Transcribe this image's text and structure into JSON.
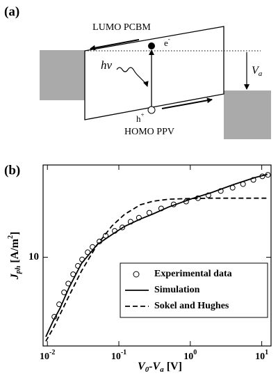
{
  "diagram": {
    "panel_label": "(a)",
    "lumo": "LUMO PCBM",
    "electron": "e",
    "electron_sup": "-",
    "photon": "hν",
    "hole": "h",
    "hole_sup": "+",
    "homo": "HOMO PPV",
    "voltage": "V",
    "voltage_sub": "a"
  },
  "chart_data": {
    "type": "line",
    "panel_label": "(b)",
    "y_label_parts": [
      "J",
      "ph",
      " [A/m",
      "2",
      "]"
    ],
    "x_label_parts": [
      "V",
      "0",
      "-V",
      "a",
      " [V]"
    ],
    "xscale": "log",
    "yscale": "log",
    "xlim": [
      0.0087,
      13.5
    ],
    "ylim": [
      3,
      35
    ],
    "xticks": [
      {
        "value": 0.01,
        "label": "10",
        "exponent": "-2"
      },
      {
        "value": 0.1,
        "label": "10",
        "exponent": "-1"
      },
      {
        "value": 1,
        "label": "10",
        "exponent": "0"
      },
      {
        "value": 10,
        "label": "10",
        "exponent": "1"
      }
    ],
    "yticks": [
      10
    ],
    "legend": "lower right",
    "series": [
      {
        "name": "Experimental data",
        "color": "#000000",
        "marker": "circle",
        "x": [
          0.0125,
          0.0146,
          0.0171,
          0.0196,
          0.0229,
          0.0267,
          0.0306,
          0.0366,
          0.0428,
          0.0535,
          0.0654,
          0.0875,
          0.112,
          0.146,
          0.191,
          0.267,
          0.391,
          0.585,
          0.875,
          1.28,
          1.79,
          2.67,
          3.91,
          5.47,
          7.64,
          10.2,
          12.2
        ],
        "values": [
          4.46,
          5.28,
          6.21,
          7.0,
          7.94,
          8.9,
          9.7,
          10.7,
          11.5,
          12.4,
          13.4,
          14.3,
          15.0,
          16.2,
          17.1,
          18.3,
          19.4,
          20.5,
          21.3,
          22.3,
          23.2,
          24.6,
          25.7,
          27.0,
          28.6,
          30.0,
          30.6
        ]
      },
      {
        "name": "Simulation",
        "color": "#000000",
        "line_style": "solid",
        "x": [
          0.0095,
          0.012,
          0.015,
          0.02,
          0.03,
          0.05,
          0.08,
          0.12,
          0.2,
          0.3,
          0.5,
          1,
          2,
          4,
          8,
          12
        ],
        "values": [
          3.4,
          4.2,
          5.0,
          6.6,
          9.2,
          11.9,
          13.6,
          15.2,
          16.8,
          18.0,
          19.8,
          22.0,
          24.1,
          26.8,
          29.5,
          30.8
        ]
      },
      {
        "name": "Sokel and Hughes",
        "color": "#000000",
        "line_style": "dashed",
        "x": [
          0.0095,
          0.012,
          0.015,
          0.02,
          0.03,
          0.05,
          0.08,
          0.12,
          0.2,
          0.3,
          0.5,
          1,
          2,
          4,
          12
        ],
        "values": [
          3.2,
          3.8,
          4.6,
          5.9,
          8.3,
          11.9,
          15.3,
          17.9,
          20.4,
          21.4,
          22.0,
          22.2,
          22.3,
          22.3,
          22.3
        ]
      }
    ]
  }
}
